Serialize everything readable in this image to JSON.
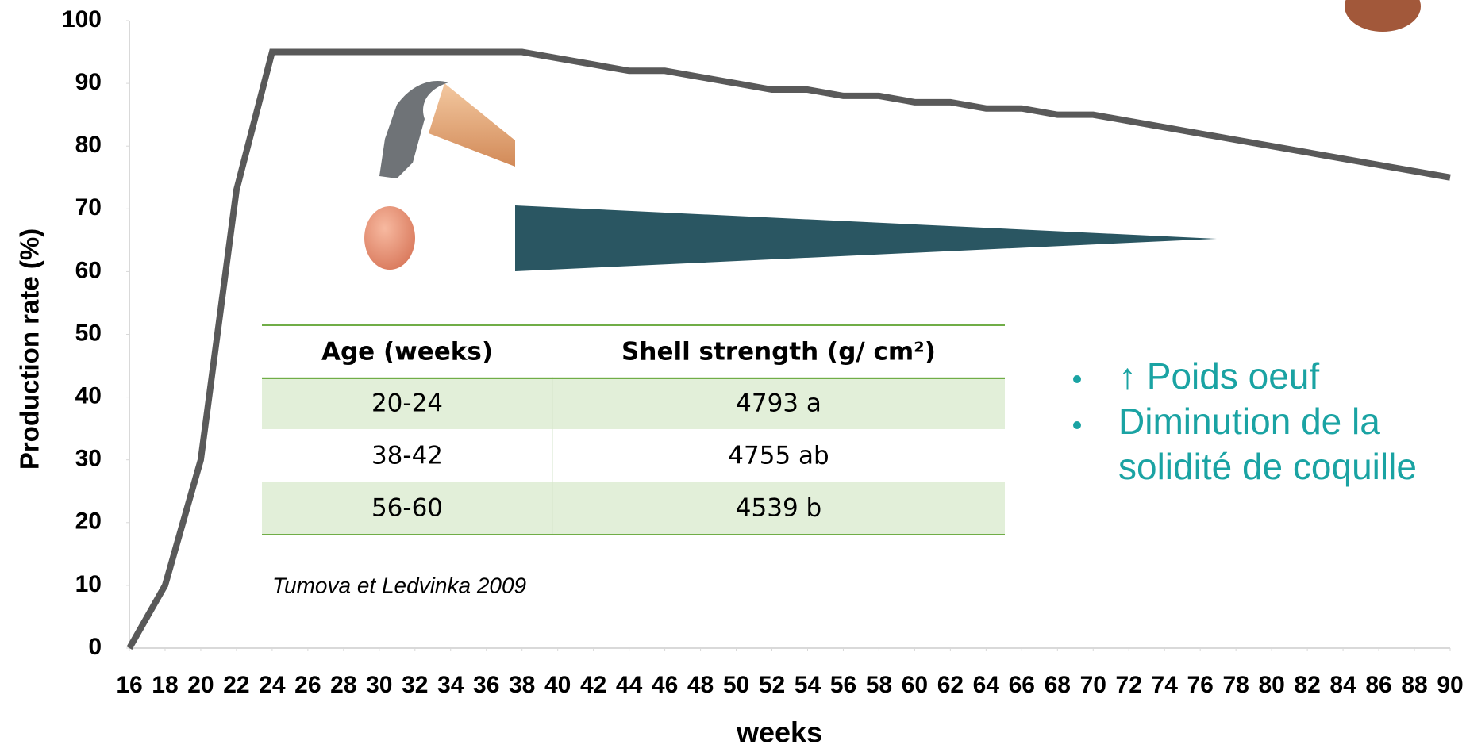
{
  "chart_data": {
    "type": "line",
    "x_label": "weeks",
    "y_label": "Production rate (%)",
    "x": [
      16,
      18,
      20,
      22,
      24,
      26,
      28,
      30,
      32,
      34,
      36,
      38,
      40,
      42,
      44,
      46,
      48,
      50,
      52,
      54,
      56,
      58,
      60,
      62,
      64,
      66,
      68,
      70,
      72,
      74,
      76,
      78,
      80,
      82,
      84,
      86,
      88,
      90
    ],
    "series": [
      {
        "name": "Production rate",
        "color": "#595959",
        "values": [
          0,
          10,
          30,
          73,
          95,
          95,
          95,
          95,
          95,
          95,
          95,
          95,
          94,
          93,
          92,
          92,
          91,
          90,
          89,
          89,
          88,
          88,
          87,
          87,
          86,
          86,
          85,
          85,
          84,
          83,
          82,
          81,
          80,
          79,
          78,
          77,
          76,
          75
        ]
      }
    ],
    "xlim": [
      16,
      90
    ],
    "xticks": [
      16,
      18,
      20,
      22,
      24,
      26,
      28,
      30,
      32,
      34,
      36,
      38,
      40,
      42,
      44,
      46,
      48,
      50,
      52,
      54,
      56,
      58,
      60,
      62,
      64,
      66,
      68,
      70,
      72,
      74,
      76,
      78,
      80,
      82,
      84,
      86,
      88,
      90
    ],
    "ylim": [
      0,
      100
    ],
    "yticks": [
      0,
      10,
      20,
      30,
      40,
      50,
      60,
      70,
      80,
      90,
      100
    ],
    "table": {
      "header": [
        "Age (weeks)",
        "Shell strength (g/ cm²)"
      ],
      "rows": [
        [
          "20-24",
          "4793 a"
        ],
        [
          "38-42",
          "4755 ab"
        ],
        [
          "56-60",
          "4539 b"
        ]
      ]
    },
    "citation": "Tumova et Ledvinka 2009",
    "bullets": [
      "↑ Poids oeuf",
      "Diminution de la",
      "solidité de coquille"
    ]
  }
}
